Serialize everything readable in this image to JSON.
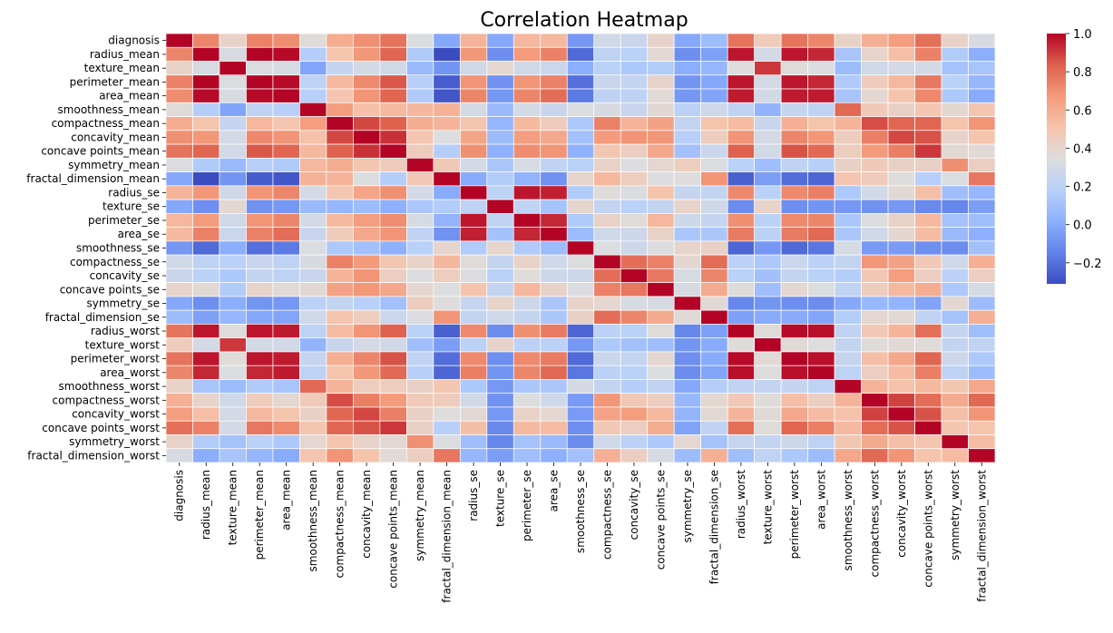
{
  "chart_data": {
    "type": "heatmap",
    "title": "Correlation Heatmap",
    "colormap": "coolwarm",
    "vmin": -0.31,
    "vmax": 1.0,
    "cell_border_color": "#ffffff",
    "labels": [
      "diagnosis",
      "radius_mean",
      "texture_mean",
      "perimeter_mean",
      "area_mean",
      "smoothness_mean",
      "compactness_mean",
      "concavity_mean",
      "concave points_mean",
      "symmetry_mean",
      "fractal_dimension_mean",
      "radius_se",
      "texture_se",
      "perimeter_se",
      "area_se",
      "smoothness_se",
      "compactness_se",
      "concavity_se",
      "concave points_se",
      "symmetry_se",
      "fractal_dimension_se",
      "radius_worst",
      "texture_worst",
      "perimeter_worst",
      "area_worst",
      "smoothness_worst",
      "compactness_worst",
      "concavity_worst",
      "concave points_worst",
      "symmetry_worst",
      "fractal_dimension_worst"
    ],
    "colorbar_ticks": [
      {
        "value": 1.0,
        "label": "1.0"
      },
      {
        "value": 0.8,
        "label": "0.8"
      },
      {
        "value": 0.6,
        "label": "0.6"
      },
      {
        "value": 0.4,
        "label": "0.4"
      },
      {
        "value": 0.2,
        "label": "0.2"
      },
      {
        "value": 0.0,
        "label": "0.0"
      },
      {
        "value": -0.2,
        "label": "−0.2"
      }
    ],
    "matrix": [
      [
        1.0,
        0.73,
        0.42,
        0.74,
        0.71,
        0.36,
        0.6,
        0.7,
        0.78,
        0.33,
        -0.01,
        0.57,
        -0.01,
        0.56,
        0.55,
        -0.07,
        0.29,
        0.25,
        0.41,
        -0.01,
        0.08,
        0.78,
        0.46,
        0.78,
        0.73,
        0.42,
        0.59,
        0.66,
        0.79,
        0.42,
        0.32
      ],
      [
        0.73,
        1.0,
        0.32,
        1.0,
        0.99,
        0.17,
        0.51,
        0.68,
        0.82,
        0.15,
        -0.31,
        0.68,
        -0.1,
        0.67,
        0.74,
        -0.22,
        0.21,
        0.19,
        0.38,
        -0.1,
        -0.04,
        0.97,
        0.3,
        0.97,
        0.94,
        0.12,
        0.41,
        0.53,
        0.74,
        0.16,
        0.01
      ],
      [
        0.42,
        0.32,
        1.0,
        0.33,
        0.32,
        -0.02,
        0.24,
        0.3,
        0.29,
        0.07,
        -0.08,
        0.28,
        0.39,
        0.28,
        0.26,
        0.01,
        0.19,
        0.14,
        0.16,
        0.01,
        0.05,
        0.35,
        0.91,
        0.36,
        0.34,
        0.08,
        0.28,
        0.3,
        0.3,
        0.11,
        0.12
      ],
      [
        0.74,
        1.0,
        0.33,
        1.0,
        0.99,
        0.21,
        0.56,
        0.72,
        0.85,
        0.18,
        -0.26,
        0.69,
        -0.09,
        0.69,
        0.74,
        -0.2,
        0.25,
        0.23,
        0.41,
        -0.08,
        -0.01,
        0.97,
        0.3,
        0.97,
        0.94,
        0.15,
        0.46,
        0.56,
        0.77,
        0.19,
        0.05
      ],
      [
        0.71,
        0.99,
        0.32,
        0.99,
        1.0,
        0.18,
        0.5,
        0.69,
        0.82,
        0.15,
        -0.28,
        0.73,
        -0.07,
        0.73,
        0.8,
        -0.17,
        0.21,
        0.21,
        0.37,
        -0.07,
        -0.02,
        0.96,
        0.29,
        0.96,
        0.96,
        0.12,
        0.39,
        0.51,
        0.72,
        0.14,
        0.0
      ],
      [
        0.36,
        0.17,
        -0.02,
        0.21,
        0.18,
        1.0,
        0.66,
        0.52,
        0.55,
        0.56,
        0.58,
        0.3,
        0.07,
        0.3,
        0.25,
        0.33,
        0.32,
        0.25,
        0.38,
        0.2,
        0.28,
        0.21,
        0.04,
        0.24,
        0.21,
        0.81,
        0.47,
        0.43,
        0.5,
        0.39,
        0.5
      ],
      [
        0.6,
        0.51,
        0.24,
        0.56,
        0.5,
        0.66,
        1.0,
        0.88,
        0.83,
        0.6,
        0.57,
        0.5,
        0.05,
        0.55,
        0.46,
        0.14,
        0.74,
        0.57,
        0.64,
        0.23,
        0.51,
        0.54,
        0.25,
        0.59,
        0.51,
        0.57,
        0.87,
        0.82,
        0.82,
        0.51,
        0.69
      ],
      [
        0.7,
        0.68,
        0.3,
        0.72,
        0.69,
        0.52,
        0.88,
        1.0,
        0.92,
        0.5,
        0.34,
        0.63,
        0.08,
        0.66,
        0.62,
        0.1,
        0.67,
        0.69,
        0.68,
        0.18,
        0.45,
        0.69,
        0.3,
        0.73,
        0.68,
        0.45,
        0.75,
        0.88,
        0.86,
        0.41,
        0.51
      ],
      [
        0.78,
        0.82,
        0.29,
        0.85,
        0.82,
        0.55,
        0.83,
        0.92,
        1.0,
        0.46,
        0.17,
        0.7,
        0.02,
        0.71,
        0.69,
        0.03,
        0.49,
        0.44,
        0.62,
        0.1,
        0.26,
        0.83,
        0.29,
        0.86,
        0.81,
        0.45,
        0.67,
        0.75,
        0.91,
        0.38,
        0.37
      ],
      [
        0.33,
        0.15,
        0.07,
        0.18,
        0.15,
        0.56,
        0.6,
        0.5,
        0.46,
        1.0,
        0.48,
        0.3,
        0.13,
        0.31,
        0.22,
        0.19,
        0.42,
        0.34,
        0.39,
        0.45,
        0.33,
        0.19,
        0.09,
        0.22,
        0.18,
        0.43,
        0.47,
        0.43,
        0.43,
        0.7,
        0.44
      ],
      [
        -0.01,
        -0.31,
        -0.08,
        -0.26,
        -0.28,
        0.58,
        0.57,
        0.34,
        0.17,
        0.48,
        1.0,
        0.0,
        0.16,
        0.04,
        -0.09,
        0.4,
        0.56,
        0.45,
        0.34,
        0.35,
        0.69,
        -0.25,
        -0.05,
        -0.21,
        -0.23,
        0.5,
        0.46,
        0.35,
        0.18,
        0.33,
        0.77
      ],
      [
        0.57,
        0.68,
        0.28,
        0.69,
        0.73,
        0.3,
        0.5,
        0.63,
        0.7,
        0.3,
        0.0,
        1.0,
        0.21,
        0.97,
        0.95,
        0.16,
        0.36,
        0.33,
        0.51,
        0.24,
        0.23,
        0.72,
        0.19,
        0.72,
        0.75,
        0.14,
        0.29,
        0.38,
        0.53,
        0.09,
        0.05
      ],
      [
        -0.01,
        -0.1,
        0.39,
        -0.09,
        -0.07,
        0.07,
        0.05,
        0.08,
        0.02,
        0.13,
        0.16,
        0.21,
        1.0,
        0.22,
        0.11,
        0.4,
        0.23,
        0.19,
        0.23,
        0.41,
        0.28,
        -0.11,
        0.41,
        -0.1,
        -0.08,
        -0.07,
        -0.09,
        -0.07,
        -0.12,
        -0.13,
        -0.05
      ],
      [
        0.56,
        0.67,
        0.28,
        0.69,
        0.73,
        0.3,
        0.55,
        0.66,
        0.71,
        0.31,
        0.04,
        0.97,
        0.22,
        1.0,
        0.94,
        0.15,
        0.42,
        0.36,
        0.56,
        0.27,
        0.24,
        0.7,
        0.2,
        0.72,
        0.73,
        0.13,
        0.34,
        0.42,
        0.55,
        0.11,
        0.09
      ],
      [
        0.55,
        0.74,
        0.26,
        0.74,
        0.8,
        0.25,
        0.46,
        0.62,
        0.69,
        0.22,
        -0.09,
        0.95,
        0.11,
        0.94,
        1.0,
        0.08,
        0.28,
        0.27,
        0.42,
        0.13,
        0.13,
        0.76,
        0.2,
        0.76,
        0.81,
        0.13,
        0.28,
        0.39,
        0.54,
        0.07,
        0.02
      ],
      [
        -0.07,
        -0.22,
        0.01,
        -0.2,
        -0.17,
        0.33,
        0.14,
        0.1,
        0.03,
        0.19,
        0.4,
        0.16,
        0.4,
        0.15,
        0.08,
        1.0,
        0.34,
        0.27,
        0.33,
        0.41,
        0.43,
        -0.23,
        -0.07,
        -0.22,
        -0.18,
        0.31,
        -0.06,
        -0.06,
        -0.1,
        -0.11,
        0.1
      ],
      [
        0.29,
        0.21,
        0.19,
        0.25,
        0.21,
        0.32,
        0.74,
        0.67,
        0.49,
        0.42,
        0.56,
        0.36,
        0.23,
        0.42,
        0.28,
        0.34,
        1.0,
        0.8,
        0.74,
        0.39,
        0.8,
        0.2,
        0.14,
        0.26,
        0.2,
        0.23,
        0.68,
        0.64,
        0.48,
        0.28,
        0.59
      ],
      [
        0.25,
        0.19,
        0.14,
        0.23,
        0.21,
        0.25,
        0.57,
        0.69,
        0.44,
        0.34,
        0.45,
        0.33,
        0.19,
        0.36,
        0.27,
        0.27,
        0.8,
        1.0,
        0.77,
        0.31,
        0.73,
        0.19,
        0.1,
        0.23,
        0.19,
        0.17,
        0.48,
        0.66,
        0.44,
        0.2,
        0.44
      ],
      [
        0.41,
        0.38,
        0.16,
        0.41,
        0.37,
        0.38,
        0.64,
        0.68,
        0.62,
        0.39,
        0.34,
        0.51,
        0.23,
        0.56,
        0.42,
        0.33,
        0.74,
        0.77,
        1.0,
        0.31,
        0.61,
        0.36,
        0.09,
        0.39,
        0.34,
        0.22,
        0.45,
        0.55,
        0.6,
        0.14,
        0.31
      ],
      [
        -0.01,
        -0.1,
        0.01,
        -0.08,
        -0.07,
        0.2,
        0.23,
        0.18,
        0.1,
        0.45,
        0.35,
        0.24,
        0.41,
        0.27,
        0.13,
        0.41,
        0.39,
        0.31,
        0.31,
        1.0,
        0.37,
        -0.13,
        -0.08,
        -0.1,
        -0.11,
        -0.01,
        0.06,
        0.04,
        -0.03,
        0.39,
        0.08
      ],
      [
        0.08,
        -0.04,
        0.05,
        -0.01,
        -0.02,
        0.28,
        0.51,
        0.45,
        0.26,
        0.33,
        0.69,
        0.23,
        0.28,
        0.24,
        0.13,
        0.43,
        0.8,
        0.73,
        0.61,
        0.37,
        1.0,
        -0.04,
        -0.0,
        -0.0,
        -0.02,
        0.17,
        0.39,
        0.38,
        0.22,
        0.11,
        0.59
      ],
      [
        0.78,
        0.97,
        0.35,
        0.97,
        0.96,
        0.21,
        0.54,
        0.69,
        0.83,
        0.19,
        -0.25,
        0.72,
        -0.11,
        0.7,
        0.76,
        -0.23,
        0.2,
        0.19,
        0.36,
        -0.13,
        -0.04,
        1.0,
        0.36,
        0.99,
        0.98,
        0.22,
        0.48,
        0.57,
        0.79,
        0.24,
        0.09
      ],
      [
        0.46,
        0.3,
        0.91,
        0.3,
        0.29,
        0.04,
        0.25,
        0.3,
        0.29,
        0.09,
        -0.05,
        0.19,
        0.41,
        0.2,
        0.2,
        -0.07,
        0.14,
        0.1,
        0.09,
        -0.08,
        -0.0,
        0.36,
        1.0,
        0.37,
        0.35,
        0.23,
        0.36,
        0.37,
        0.36,
        0.23,
        0.22
      ],
      [
        0.78,
        0.97,
        0.36,
        0.97,
        0.96,
        0.24,
        0.59,
        0.73,
        0.86,
        0.22,
        -0.21,
        0.72,
        -0.1,
        0.72,
        0.76,
        -0.22,
        0.26,
        0.23,
        0.39,
        -0.1,
        -0.0,
        0.99,
        0.37,
        1.0,
        0.98,
        0.24,
        0.53,
        0.62,
        0.82,
        0.27,
        0.14
      ],
      [
        0.73,
        0.94,
        0.34,
        0.94,
        0.96,
        0.21,
        0.51,
        0.68,
        0.81,
        0.18,
        -0.23,
        0.75,
        -0.08,
        0.73,
        0.81,
        -0.18,
        0.2,
        0.19,
        0.34,
        -0.11,
        -0.02,
        0.98,
        0.35,
        0.98,
        1.0,
        0.21,
        0.44,
        0.54,
        0.75,
        0.21,
        0.08
      ],
      [
        0.42,
        0.12,
        0.08,
        0.15,
        0.12,
        0.81,
        0.57,
        0.45,
        0.45,
        0.43,
        0.5,
        0.14,
        -0.07,
        0.13,
        0.13,
        0.31,
        0.23,
        0.17,
        0.22,
        -0.01,
        0.17,
        0.22,
        0.23,
        0.24,
        0.21,
        1.0,
        0.57,
        0.52,
        0.55,
        0.49,
        0.62
      ],
      [
        0.59,
        0.41,
        0.28,
        0.46,
        0.39,
        0.47,
        0.87,
        0.75,
        0.67,
        0.47,
        0.46,
        0.29,
        -0.09,
        0.34,
        0.28,
        -0.06,
        0.68,
        0.48,
        0.45,
        0.06,
        0.39,
        0.48,
        0.36,
        0.53,
        0.44,
        0.57,
        1.0,
        0.89,
        0.8,
        0.61,
        0.81
      ],
      [
        0.66,
        0.53,
        0.3,
        0.56,
        0.51,
        0.43,
        0.82,
        0.88,
        0.75,
        0.43,
        0.35,
        0.38,
        -0.07,
        0.42,
        0.39,
        -0.06,
        0.64,
        0.66,
        0.55,
        0.04,
        0.38,
        0.57,
        0.37,
        0.62,
        0.54,
        0.52,
        0.89,
        1.0,
        0.86,
        0.53,
        0.69
      ],
      [
        0.79,
        0.74,
        0.3,
        0.77,
        0.72,
        0.5,
        0.82,
        0.86,
        0.91,
        0.43,
        0.18,
        0.53,
        -0.12,
        0.55,
        0.54,
        -0.1,
        0.48,
        0.44,
        0.6,
        -0.03,
        0.22,
        0.79,
        0.36,
        0.82,
        0.75,
        0.55,
        0.8,
        0.86,
        1.0,
        0.5,
        0.51
      ],
      [
        0.42,
        0.16,
        0.11,
        0.19,
        0.14,
        0.39,
        0.51,
        0.41,
        0.38,
        0.7,
        0.33,
        0.09,
        -0.13,
        0.11,
        0.07,
        -0.11,
        0.28,
        0.2,
        0.14,
        0.39,
        0.11,
        0.24,
        0.23,
        0.27,
        0.21,
        0.49,
        0.61,
        0.53,
        0.5,
        1.0,
        0.54
      ],
      [
        0.32,
        0.01,
        0.12,
        0.05,
        0.0,
        0.5,
        0.69,
        0.51,
        0.37,
        0.44,
        0.77,
        0.05,
        -0.05,
        0.09,
        0.02,
        0.1,
        0.59,
        0.44,
        0.31,
        0.08,
        0.59,
        0.09,
        0.22,
        0.14,
        0.08,
        0.62,
        0.81,
        0.69,
        0.51,
        0.54,
        1.0
      ]
    ]
  }
}
